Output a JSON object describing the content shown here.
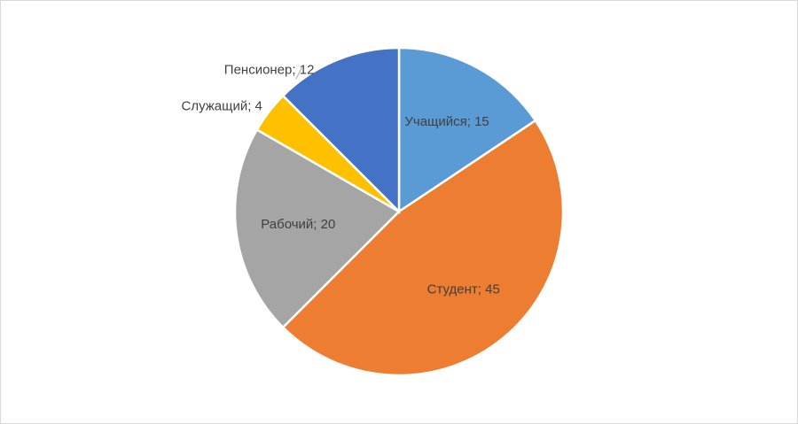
{
  "chart_data": {
    "type": "pie",
    "values": [
      15,
      45,
      20,
      4,
      12
    ],
    "value_labels": [
      "Учащийся; 15",
      "Студент; 45",
      "Рабочий; 20",
      "Служащий; 4",
      "Пенсионер; 12"
    ],
    "colors": [
      "#5b9bd5",
      "#ed7d31",
      "#a5a5a5",
      "#ffc000",
      "#4472c4"
    ]
  }
}
